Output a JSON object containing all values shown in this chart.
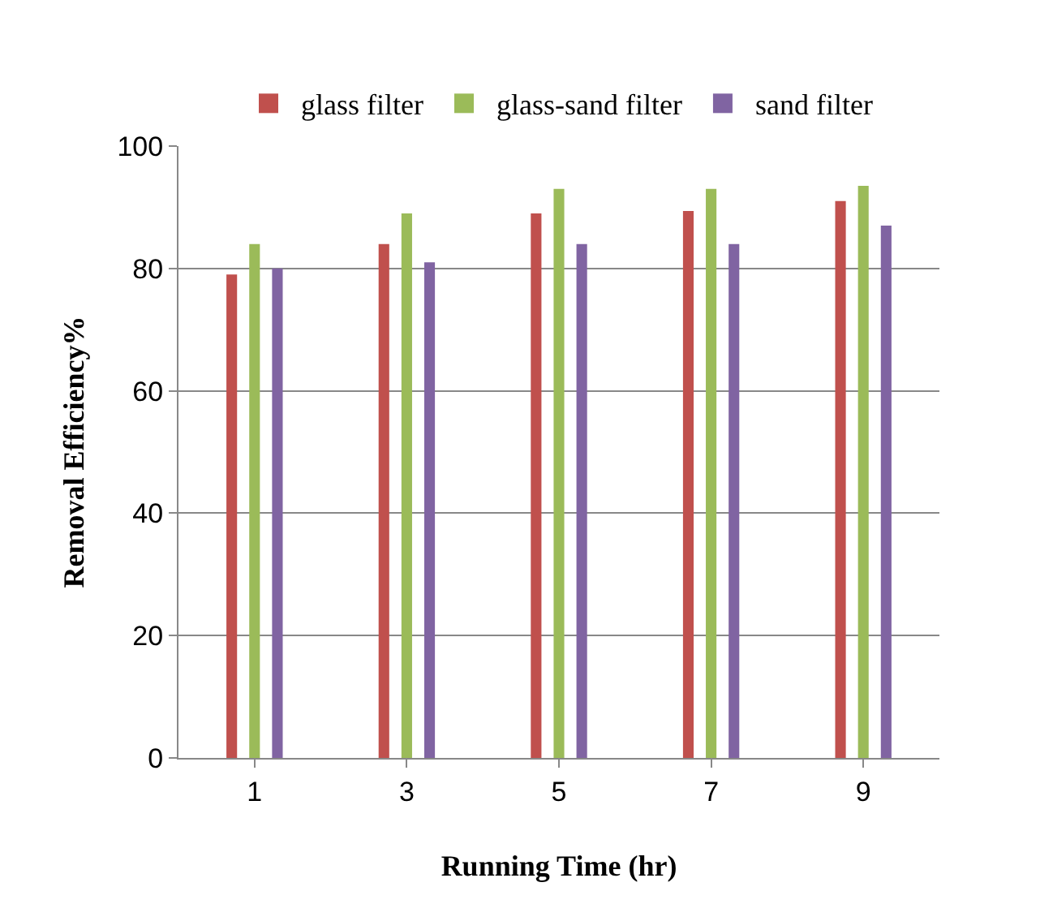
{
  "chart_data": {
    "type": "bar",
    "xlabel": "Running Time (hr)",
    "ylabel": "Removal Efficiency%",
    "categories": [
      "1",
      "3",
      "5",
      "7",
      "9"
    ],
    "series": [
      {
        "name": "glass filter",
        "color": "#c0504d",
        "values": [
          79,
          84,
          89,
          89.4,
          91
        ]
      },
      {
        "name": "glass-sand filter",
        "color": "#9bbb59",
        "values": [
          84,
          89,
          93,
          93,
          93.5
        ]
      },
      {
        "name": "sand filter",
        "color": "#8064a2",
        "values": [
          80,
          81,
          84,
          84,
          87
        ]
      }
    ],
    "ylim": [
      0,
      100
    ],
    "yticks": [
      0,
      20,
      40,
      60,
      80,
      100
    ],
    "grid": "y",
    "legend": "top"
  }
}
